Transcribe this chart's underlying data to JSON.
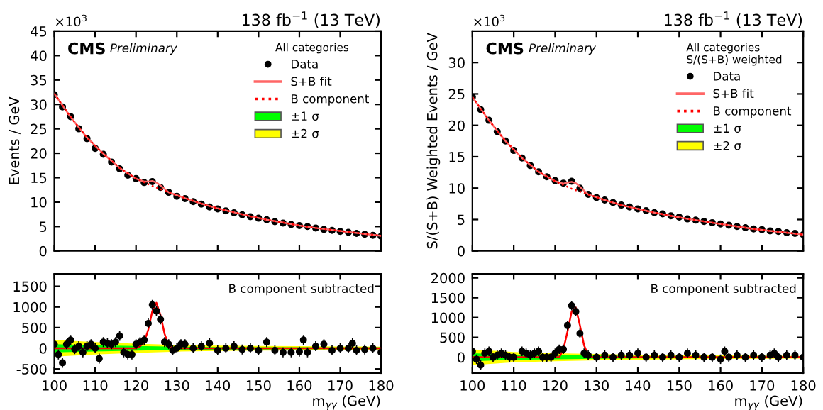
{
  "chart_data": [
    {
      "type": "scatter",
      "ylabel": "Events / GeV",
      "legend_title": "All categories",
      "legend": "top right",
      "tick_labels": "y",
      "xlim": [
        100,
        180
      ],
      "xticks": [
        100,
        110,
        120,
        130,
        140,
        150,
        160,
        170,
        180
      ],
      "ylim": [
        0,
        45
      ],
      "yticks": [
        0,
        5,
        10,
        15,
        20,
        25,
        30,
        35,
        40,
        45
      ],
      "annotations": [
        "138 fb$^{−1}$ (13 TeV)",
        "×10$^{3}$",
        "CMS",
        "Preliminary"
      ],
      "series": [
        {
          "name": "B component",
          "type": "line",
          "line_style": "dotted",
          "color": "#ff0000",
          "x": [
            100,
            104,
            108,
            112,
            116,
            120,
            124,
            128,
            132,
            136,
            140,
            144,
            148,
            152,
            156,
            160,
            164,
            168,
            172,
            176,
            180
          ],
          "values": [
            32.2,
            27.4,
            23.2,
            19.9,
            17.0,
            14.8,
            13.3,
            12.0,
            10.8,
            9.7,
            8.7,
            7.9,
            7.1,
            6.4,
            5.8,
            5.2,
            4.7,
            4.3,
            3.9,
            3.5,
            3.1
          ]
        },
        {
          "name": "S+B fit",
          "type": "line",
          "line_style": "solid",
          "color": "#ff6666",
          "x": [
            100,
            104,
            108,
            112,
            116,
            120,
            122,
            123,
            124,
            125,
            126,
            128,
            132,
            136,
            140,
            144,
            148,
            152,
            156,
            160,
            164,
            168,
            172,
            176,
            180
          ],
          "values": [
            32.2,
            27.4,
            23.2,
            19.9,
            17.0,
            14.8,
            14.2,
            14.2,
            14.3,
            14.0,
            13.4,
            12.0,
            10.8,
            9.7,
            8.7,
            7.9,
            7.1,
            6.4,
            5.8,
            5.2,
            4.7,
            4.3,
            3.9,
            3.5,
            3.1
          ]
        },
        {
          "name": "Data",
          "marker": "circle",
          "color": "#000000",
          "x": [
            100,
            102,
            104,
            106,
            108,
            110,
            112,
            114,
            116,
            118,
            120,
            122,
            124,
            126,
            128,
            130,
            132,
            134,
            136,
            138,
            140,
            142,
            144,
            146,
            148,
            150,
            152,
            154,
            156,
            158,
            160,
            162,
            164,
            166,
            168,
            170,
            172,
            174,
            176,
            178,
            180
          ],
          "values": [
            32,
            29.5,
            27.5,
            25,
            23,
            21,
            19.8,
            18.2,
            16.8,
            15.5,
            14.8,
            14,
            14.2,
            13,
            12,
            11.2,
            10.7,
            10.1,
            9.6,
            9,
            8.6,
            8.2,
            7.8,
            7.4,
            7,
            6.7,
            6.4,
            6,
            5.7,
            5.4,
            5.2,
            5,
            4.7,
            4.4,
            4.2,
            4,
            3.8,
            3.6,
            3.4,
            3.2,
            3
          ]
        }
      ]
    },
    {
      "type": "scatter",
      "legend": "top right",
      "xlabel": "m$_{γγ}$ (GeV)",
      "xlim": [
        100,
        180
      ],
      "xticks": [
        100,
        110,
        120,
        130,
        140,
        150,
        160,
        170,
        180
      ],
      "ylim": [
        -600,
        1800
      ],
      "yticks": [
        -500,
        0,
        500,
        1000,
        1500
      ],
      "annotations": [
        "B component subtracted"
      ],
      "series": [
        {
          "name": "±2 σ",
          "type": "area",
          "color": "#ffff00",
          "x": [
            100,
            110,
            120,
            130,
            140,
            150,
            160,
            170,
            180
          ],
          "values": [
            null,
            null,
            null,
            null,
            null,
            null,
            null,
            null,
            null
          ],
          "lower": [
            -200,
            -150,
            -110,
            -80,
            -65,
            -55,
            -50,
            -45,
            -40
          ],
          "upper": [
            200,
            150,
            110,
            80,
            65,
            55,
            50,
            45,
            40
          ]
        },
        {
          "name": "±1 σ",
          "type": "area",
          "color": "#00ff00",
          "x": [
            100,
            110,
            120,
            130,
            140,
            150,
            160,
            170,
            180
          ],
          "values": [
            null,
            null,
            null,
            null,
            null,
            null,
            null,
            null,
            null
          ],
          "lower": [
            -100,
            -75,
            -55,
            -40,
            -32,
            -28,
            -25,
            -22,
            -20
          ],
          "upper": [
            100,
            75,
            55,
            40,
            32,
            28,
            25,
            22,
            20
          ]
        },
        {
          "type": "line",
          "line_style": "solid",
          "color": "#ff0000",
          "x": [
            100,
            120,
            121,
            122,
            123,
            124,
            125,
            126,
            127,
            128,
            129,
            130,
            180
          ],
          "values": [
            0,
            0,
            50,
            150,
            450,
            900,
            1100,
            800,
            350,
            80,
            10,
            0,
            0
          ]
        },
        {
          "marker": "circle",
          "color": "#000000",
          "x": [
            100,
            101,
            102,
            103,
            104,
            105,
            106,
            107,
            108,
            109,
            110,
            111,
            112,
            113,
            114,
            115,
            116,
            117,
            118,
            119,
            120,
            121,
            122,
            123,
            124,
            125,
            126,
            127,
            128,
            129,
            130,
            131,
            132,
            134,
            136,
            138,
            140,
            142,
            144,
            146,
            148,
            150,
            152,
            154,
            156,
            158,
            160,
            161,
            162,
            164,
            166,
            168,
            170,
            172,
            173,
            174,
            176,
            178,
            180
          ],
          "values": [
            100,
            -150,
            -350,
            100,
            200,
            -20,
            50,
            -100,
            50,
            100,
            0,
            -250,
            150,
            120,
            100,
            150,
            300,
            -100,
            -150,
            -150,
            100,
            150,
            200,
            600,
            1050,
            900,
            700,
            150,
            100,
            -50,
            0,
            100,
            100,
            0,
            50,
            120,
            -50,
            0,
            50,
            -30,
            0,
            -50,
            150,
            -50,
            -100,
            -100,
            -80,
            200,
            -100,
            50,
            100,
            -50,
            0,
            0,
            120,
            -50,
            -30,
            0,
            -100
          ],
          "errors": [
            120,
            120,
            120,
            120,
            120,
            120,
            120,
            120,
            120,
            120,
            120,
            120,
            120,
            120,
            120,
            120,
            120,
            120,
            120,
            120,
            120,
            120,
            120,
            120,
            120,
            120,
            120,
            120,
            120,
            120,
            120,
            120,
            120,
            120,
            120,
            120,
            120,
            120,
            120,
            120,
            120,
            120,
            120,
            120,
            120,
            120,
            120,
            120,
            120,
            120,
            120,
            120,
            120,
            120,
            120,
            120,
            120,
            120,
            120
          ]
        }
      ]
    },
    {
      "type": "scatter",
      "ylabel": "S/(S+B) Weighted Events / GeV",
      "legend_title": "All categories\nS/(S+B) weighted",
      "legend": "top right",
      "tick_labels": "y",
      "xlim": [
        100,
        180
      ],
      "xticks": [
        100,
        110,
        120,
        130,
        140,
        150,
        160,
        170,
        180
      ],
      "ylim": [
        0,
        35
      ],
      "yticks": [
        0,
        5,
        10,
        15,
        20,
        25,
        30
      ],
      "annotations": [
        "138 fb$^{−1}$ (13 TeV)",
        "×10$^{3}$",
        "CMS",
        "Preliminary"
      ],
      "series": [
        {
          "name": "B component",
          "type": "line",
          "line_style": "dotted",
          "color": "#ff0000",
          "x": [
            100,
            104,
            108,
            112,
            116,
            120,
            124,
            128,
            132,
            136,
            140,
            144,
            148,
            152,
            156,
            160,
            164,
            168,
            172,
            176,
            180
          ],
          "values": [
            24.5,
            20.8,
            17.5,
            14.8,
            12.6,
            11.1,
            9.9,
            9.0,
            8.1,
            7.3,
            6.7,
            6.1,
            5.6,
            5.1,
            4.7,
            4.3,
            3.9,
            3.5,
            3.2,
            2.9,
            2.6
          ]
        },
        {
          "name": "S+B fit",
          "type": "line",
          "line_style": "solid",
          "color": "#ff6666",
          "x": [
            100,
            104,
            108,
            112,
            116,
            120,
            122,
            123,
            124,
            125,
            126,
            128,
            132,
            136,
            140,
            144,
            148,
            152,
            156,
            160,
            164,
            168,
            172,
            176,
            180
          ],
          "values": [
            24.5,
            20.8,
            17.5,
            14.8,
            12.6,
            11.1,
            10.7,
            10.9,
            11.0,
            10.8,
            10.2,
            9.0,
            8.1,
            7.3,
            6.7,
            6.1,
            5.6,
            5.1,
            4.7,
            4.3,
            3.9,
            3.5,
            3.2,
            2.9,
            2.6
          ]
        },
        {
          "name": "Data",
          "marker": "circle",
          "color": "#000000",
          "x": [
            100,
            102,
            104,
            106,
            108,
            110,
            112,
            114,
            116,
            118,
            120,
            122,
            124,
            126,
            128,
            130,
            132,
            134,
            136,
            138,
            140,
            142,
            144,
            146,
            148,
            150,
            152,
            154,
            156,
            158,
            160,
            162,
            164,
            166,
            168,
            170,
            172,
            174,
            176,
            178,
            180
          ],
          "values": [
            24.5,
            22.5,
            20.8,
            19,
            17.5,
            16,
            14.8,
            13.6,
            12.6,
            11.8,
            11.2,
            10.8,
            11.1,
            10,
            9,
            8.5,
            8.1,
            7.7,
            7.3,
            7,
            6.7,
            6.4,
            6.1,
            5.9,
            5.6,
            5.4,
            5.1,
            4.9,
            4.7,
            4.5,
            4.3,
            4.1,
            3.9,
            3.7,
            3.5,
            3.4,
            3.2,
            3.1,
            2.9,
            2.8,
            2.6
          ]
        }
      ]
    },
    {
      "type": "scatter",
      "legend": "top right",
      "xlabel": "m$_{γγ}$ (GeV)",
      "xlim": [
        100,
        180
      ],
      "xticks": [
        100,
        110,
        120,
        130,
        140,
        150,
        160,
        170,
        180
      ],
      "ylim": [
        -400,
        2100
      ],
      "yticks": [
        0,
        500,
        1000,
        1500,
        2000
      ],
      "annotations": [
        "B component subtracted"
      ],
      "series": [
        {
          "name": "±2 σ",
          "type": "area",
          "color": "#ffff00",
          "x": [
            100,
            110,
            120,
            130,
            140,
            150,
            160,
            170,
            180
          ],
          "values": [
            null,
            null,
            null,
            null,
            null,
            null,
            null,
            null,
            null
          ],
          "lower": [
            -200,
            -130,
            -100,
            -80,
            -60,
            -50,
            -45,
            -40,
            -35
          ],
          "upper": [
            200,
            130,
            100,
            80,
            60,
            50,
            45,
            40,
            35
          ]
        },
        {
          "name": "±1 σ",
          "type": "area",
          "color": "#00ff00",
          "x": [
            100,
            110,
            120,
            130,
            140,
            150,
            160,
            170,
            180
          ],
          "values": [
            null,
            null,
            null,
            null,
            null,
            null,
            null,
            null,
            null
          ],
          "lower": [
            -100,
            -65,
            -50,
            -40,
            -30,
            -25,
            -22,
            -20,
            -18
          ],
          "upper": [
            100,
            65,
            50,
            40,
            30,
            25,
            22,
            20,
            18
          ]
        },
        {
          "type": "line",
          "line_style": "solid",
          "color": "#ff0000",
          "x": [
            100,
            121,
            122,
            123,
            124,
            125,
            126,
            127,
            128,
            129,
            180
          ],
          "values": [
            0,
            0,
            200,
            650,
            1150,
            1250,
            800,
            300,
            50,
            0,
            0
          ]
        },
        {
          "marker": "circle",
          "color": "#000000",
          "x": [
            100,
            101,
            102,
            103,
            104,
            105,
            106,
            107,
            108,
            109,
            110,
            112,
            113,
            114,
            115,
            116,
            117,
            118,
            119,
            120,
            121,
            122,
            123,
            124,
            125,
            126,
            127,
            128,
            130,
            132,
            134,
            136,
            138,
            140,
            142,
            144,
            146,
            148,
            150,
            152,
            154,
            156,
            158,
            160,
            161,
            162,
            164,
            166,
            168,
            170,
            172,
            173,
            174,
            176,
            178,
            180
          ],
          "values": [
            150,
            -50,
            -200,
            100,
            150,
            0,
            50,
            100,
            50,
            0,
            0,
            150,
            100,
            50,
            100,
            150,
            0,
            0,
            0,
            100,
            200,
            200,
            800,
            1300,
            1150,
            600,
            100,
            50,
            0,
            50,
            0,
            50,
            50,
            100,
            0,
            50,
            0,
            50,
            0,
            100,
            50,
            0,
            0,
            -50,
            150,
            0,
            50,
            0,
            50,
            0,
            50,
            100,
            0,
            50,
            50,
            0
          ],
          "errors": [
            120,
            120,
            120,
            120,
            120,
            120,
            120,
            120,
            120,
            120,
            120,
            120,
            120,
            120,
            120,
            120,
            120,
            120,
            120,
            120,
            120,
            120,
            120,
            120,
            120,
            120,
            120,
            120,
            120,
            120,
            120,
            120,
            120,
            120,
            120,
            120,
            120,
            120,
            120,
            120,
            120,
            120,
            120,
            120,
            120,
            120,
            120,
            120,
            120,
            120,
            120,
            120,
            120,
            120,
            120,
            120
          ]
        }
      ]
    }
  ]
}
